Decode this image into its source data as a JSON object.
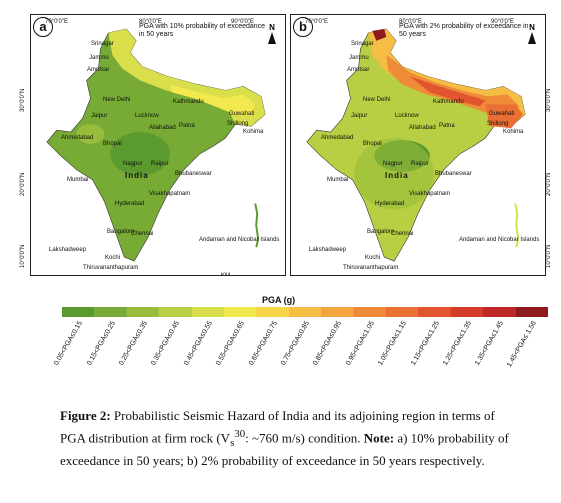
{
  "map_a": {
    "letter": "a",
    "caption": "PGA with 10% probability of exceedance in 50 years",
    "north": "N",
    "ticks_top": [
      "70°0'0\"E",
      "80°0'0\"E",
      "90°0'0\"E"
    ],
    "ticks_side": [
      "30°0'0\"N",
      "20°0'0\"N",
      "10°0'0\"N"
    ],
    "cities": [
      "Srinagar",
      "Jammu",
      "Amritsar",
      "New Delhi",
      "Jaipur",
      "Lucknow",
      "Allahabad",
      "Kathmandu",
      "Patna",
      "Shillong",
      "Guwahati",
      "Kohima",
      "Ahmedabad",
      "Bhopal",
      "Nagpur",
      "Raipur",
      "Bhubaneswar",
      "Mumbai",
      "Hyderabad",
      "Visakhapatnam",
      "Bangalore",
      "Chennai",
      "Kochi",
      "Lakshadweep",
      "Thiruvananthapuram",
      "Andaman and Nicobar Islands"
    ],
    "scale": {
      "unit": "KM",
      "values": [
        "650",
        "325",
        "0",
        "650"
      ]
    },
    "region_label": "India"
  },
  "map_b": {
    "letter": "b",
    "caption": "PGA with 2% probability of exceedance in 50 years",
    "north": "N",
    "ticks_top": [
      "70°0'0\"E",
      "80°0'0\"E",
      "90°0'0\"E"
    ],
    "ticks_side": [
      "30°0'0\"N",
      "20°0'0\"N",
      "10°0'0\"N"
    ],
    "cities": [
      "Srinagar",
      "Jammu",
      "Amritsar",
      "New Delhi",
      "Jaipur",
      "Lucknow",
      "Allahabad",
      "Kathmandu",
      "Patna",
      "Shillong",
      "Guwahati",
      "Kohima",
      "Ahmedabad",
      "Bhopal",
      "Nagpur",
      "Raipur",
      "Bhubaneswar",
      "Mumbai",
      "Hyderabad",
      "Visakhapatnam",
      "Bangalore",
      "Chennai",
      "Kochi",
      "Lakshadweep",
      "Thiruvananthapuram",
      "Andaman and Nicobar Islands"
    ],
    "region_label": "India"
  },
  "legend": {
    "title": "PGA (g)",
    "bins": [
      {
        "label": "0.05<PGA≤0.15",
        "color": "#5b9a2e"
      },
      {
        "label": "0.15<PGA≤0.25",
        "color": "#77ab35"
      },
      {
        "label": "0.25<PGA≤0.35",
        "color": "#98bd3c"
      },
      {
        "label": "0.35<PGA≤0.45",
        "color": "#b9cf43"
      },
      {
        "label": "0.45<PGA≤0.55",
        "color": "#d8df4b"
      },
      {
        "label": "0.55<PGA≤0.65",
        "color": "#f2e94f"
      },
      {
        "label": "0.65<PGA≤0.75",
        "color": "#f7d54a"
      },
      {
        "label": "0.75<PGA≤0.85",
        "color": "#f6bd44"
      },
      {
        "label": "0.85<PGA≤0.95",
        "color": "#f3a43e"
      },
      {
        "label": "0.95<PGA≤1.05",
        "color": "#ef8a38"
      },
      {
        "label": "1.05<PGA≤1.15",
        "color": "#ea6f32"
      },
      {
        "label": "1.15<PGA≤1.25",
        "color": "#e1542d"
      },
      {
        "label": "1.25<PGA≤1.35",
        "color": "#d33a2a"
      },
      {
        "label": "1.35<PGA≤1.45",
        "color": "#bb2626"
      },
      {
        "label": "1.45<PGA≤ 1.56",
        "color": "#8e1a1e"
      }
    ]
  },
  "caption": {
    "label": "Figure 2:",
    "text1": " Probabilistic Seismic Hazard of India and its adjoining region in terms of PGA distribution at firm rock (V",
    "sub": "s",
    "sup": "30",
    "text2": ": ~760 m/s) condition. ",
    "note_label": "Note:",
    "text3": " a) 10% probability of exceedance in 50 years; b) 2% probability of exceedance in 50 years respectively."
  }
}
